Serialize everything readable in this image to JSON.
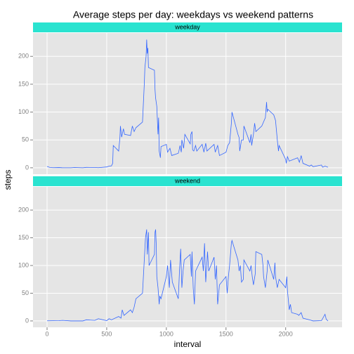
{
  "chart_data": [
    {
      "type": "line",
      "title": "Average steps per day: weekdays vs weekend patterns",
      "ylabel": "steps",
      "facet": "weekday",
      "color": "#3366ff",
      "strip_color": "#2ae3d0",
      "grid": true,
      "xlim": [
        -117.75,
        2472.75
      ],
      "xticks": [
        0,
        500,
        1000,
        1500,
        2000
      ],
      "ylim": [
        -11.5,
        241.9
      ],
      "yticks": [
        0,
        50,
        100,
        150,
        200
      ],
      "x": [
        0,
        25,
        50,
        100,
        125,
        200,
        230,
        300,
        330,
        400,
        430,
        500,
        520,
        540,
        550,
        555,
        600,
        610,
        615,
        625,
        640,
        650,
        700,
        715,
        730,
        745,
        800,
        815,
        820,
        830,
        835,
        840,
        845,
        850,
        900,
        905,
        910,
        920,
        930,
        935,
        940,
        950,
        955,
        1000,
        1010,
        1030,
        1045,
        1100,
        1105,
        1115,
        1125,
        1130,
        1145,
        1155,
        1200,
        1205,
        1215,
        1220,
        1230,
        1245,
        1255,
        1300,
        1315,
        1330,
        1340,
        1400,
        1410,
        1430,
        1445,
        1500,
        1515,
        1530,
        1545,
        1550,
        1600,
        1610,
        1615,
        1630,
        1645,
        1650,
        1700,
        1710,
        1715,
        1730,
        1740,
        1750,
        1800,
        1830,
        1840,
        1845,
        1850,
        1900,
        1915,
        1930,
        1940,
        1945,
        2000,
        2005,
        2015,
        2030,
        2100,
        2115,
        2130,
        2145,
        2200,
        2215,
        2230,
        2300,
        2310,
        2330,
        2355
      ],
      "values": [
        2.3,
        0.5,
        0.2,
        0.4,
        0.1,
        0,
        0.5,
        0,
        0.7,
        0.5,
        0.2,
        1.5,
        3,
        3.5,
        8,
        40,
        30,
        52,
        75,
        55,
        70,
        60,
        58,
        75,
        65,
        72,
        82,
        150,
        180,
        200,
        230,
        205,
        215,
        180,
        175,
        140,
        125,
        110,
        60,
        90,
        30,
        18,
        38,
        42,
        28,
        35,
        22,
        26,
        30,
        40,
        28,
        50,
        35,
        60,
        43,
        60,
        65,
        32,
        30,
        40,
        30,
        42,
        28,
        44,
        30,
        42,
        28,
        40,
        22,
        28,
        40,
        45,
        80,
        100,
        60,
        54,
        30,
        50,
        50,
        75,
        45,
        60,
        40,
        60,
        80,
        65,
        75,
        90,
        118,
        100,
        105,
        95,
        85,
        50,
        30,
        40,
        15,
        8,
        20,
        12,
        18,
        10,
        22,
        8,
        3,
        5,
        2,
        5,
        1,
        3,
        1
      ]
    },
    {
      "type": "line",
      "xlabel": "interval",
      "facet": "weekend",
      "color": "#3366ff",
      "strip_color": "#2ae3d0",
      "grid": true,
      "xlim": [
        -117.75,
        2472.75
      ],
      "xticks": [
        0,
        500,
        1000,
        1500,
        2000
      ],
      "ylim": [
        -11.5,
        241.9
      ],
      "yticks": [
        0,
        50,
        100,
        150,
        200
      ],
      "x": [
        0,
        100,
        130,
        200,
        300,
        330,
        400,
        430,
        500,
        520,
        540,
        600,
        620,
        630,
        645,
        700,
        715,
        730,
        745,
        800,
        815,
        825,
        835,
        840,
        845,
        850,
        855,
        900,
        905,
        910,
        915,
        920,
        930,
        940,
        945,
        955,
        1000,
        1010,
        1025,
        1035,
        1050,
        1100,
        1110,
        1120,
        1130,
        1140,
        1150,
        1200,
        1210,
        1215,
        1225,
        1235,
        1245,
        1300,
        1310,
        1320,
        1330,
        1340,
        1345,
        1355,
        1400,
        1410,
        1420,
        1430,
        1445,
        1500,
        1510,
        1520,
        1530,
        1545,
        1550,
        1600,
        1610,
        1620,
        1630,
        1645,
        1650,
        1700,
        1710,
        1720,
        1730,
        1745,
        1750,
        1800,
        1810,
        1815,
        1830,
        1845,
        1850,
        1900,
        1910,
        1915,
        1930,
        1945,
        2000,
        2010,
        2015,
        2030,
        2040,
        2050,
        2100,
        2110,
        2130,
        2145,
        2200,
        2230,
        2300,
        2330,
        2340,
        2355
      ],
      "values": [
        0.2,
        0.5,
        1,
        0,
        0,
        2,
        1,
        4,
        0.5,
        4,
        2,
        8,
        5,
        20,
        10,
        20,
        15,
        25,
        40,
        50,
        110,
        150,
        165,
        120,
        140,
        160,
        100,
        120,
        160,
        165,
        140,
        80,
        60,
        30,
        45,
        40,
        80,
        100,
        60,
        110,
        70,
        40,
        90,
        130,
        60,
        90,
        110,
        120,
        80,
        125,
        60,
        30,
        90,
        115,
        90,
        140,
        70,
        105,
        125,
        90,
        115,
        75,
        100,
        30,
        65,
        80,
        50,
        80,
        100,
        140,
        145,
        110,
        90,
        100,
        70,
        75,
        110,
        90,
        100,
        80,
        65,
        85,
        125,
        120,
        100,
        80,
        60,
        90,
        110,
        75,
        105,
        80,
        60,
        75,
        60,
        80,
        55,
        20,
        30,
        15,
        12,
        10,
        15,
        5,
        2,
        0,
        0.5,
        12,
        3,
        0
      ]
    }
  ]
}
